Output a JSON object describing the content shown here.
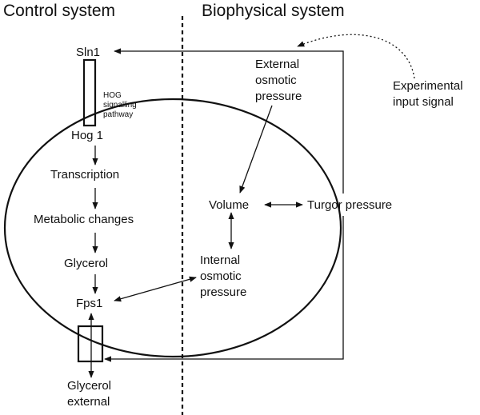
{
  "titles": {
    "control": "Control system",
    "biophysical": "Biophysical system"
  },
  "nodes": {
    "sln1": "Sln1",
    "hog_pathway": [
      "HOG",
      "signalling",
      "pathway"
    ],
    "hog1": "Hog 1",
    "transcription": "Transcription",
    "metabolic": "Metabolic changes",
    "glycerol": "Glycerol",
    "fps1": "Fps1",
    "glycerol_external": [
      "Glycerol",
      "external"
    ],
    "external_pressure": [
      "External",
      "osmotic",
      "pressure"
    ],
    "volume": "Volume",
    "turgor": "Turgor pressure",
    "internal_pressure": [
      "Internal",
      "osmotic",
      "pressure"
    ],
    "experimental_input": [
      "Experimental",
      "input signal"
    ]
  },
  "colors": {
    "ink": "#111111",
    "background": "#ffffff"
  }
}
